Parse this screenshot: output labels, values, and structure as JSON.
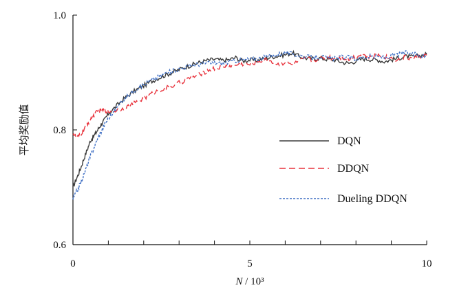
{
  "chart_data": {
    "type": "line",
    "xlabel": "N / 10³",
    "xlabel_var": "N",
    "xlabel_unit": " / 10³",
    "ylabel": "平均奖励值",
    "xlim": [
      0,
      10
    ],
    "ylim": [
      0.6,
      1.0
    ],
    "xticks": [
      {
        "v": 0,
        "label": "0"
      },
      {
        "v": 5,
        "label": "5"
      },
      {
        "v": 10,
        "label": "10"
      }
    ],
    "yticks": [
      {
        "v": 0.6,
        "label": "0.6"
      },
      {
        "v": 0.8,
        "label": "0.8"
      },
      {
        "v": 1.0,
        "label": "1.0"
      }
    ],
    "x_minor_step": 1,
    "grid": false,
    "legend_position": "right",
    "series": [
      {
        "name": "DQN",
        "color": "#3a3a3a",
        "style": "solid",
        "x": [
          0,
          0.1,
          0.2,
          0.3,
          0.4,
          0.5,
          0.6,
          0.7,
          0.8,
          0.9,
          1.0,
          1.2,
          1.4,
          1.6,
          1.8,
          2.0,
          2.2,
          2.4,
          2.6,
          2.8,
          3.0,
          3.2,
          3.4,
          3.6,
          3.8,
          4.0,
          4.2,
          4.4,
          4.6,
          4.8,
          5.0,
          5.2,
          5.4,
          5.6,
          5.8,
          6.0,
          6.2,
          6.4,
          6.6,
          6.8,
          7.0,
          7.2,
          7.4,
          7.6,
          7.8,
          8.0,
          8.2,
          8.4,
          8.6,
          8.8,
          9.0,
          9.2,
          9.4,
          9.6,
          9.8,
          10.0
        ],
        "values": [
          0.7,
          0.715,
          0.73,
          0.748,
          0.765,
          0.782,
          0.79,
          0.8,
          0.81,
          0.818,
          0.828,
          0.84,
          0.852,
          0.862,
          0.87,
          0.877,
          0.884,
          0.89,
          0.895,
          0.9,
          0.905,
          0.91,
          0.914,
          0.918,
          0.921,
          0.923,
          0.921,
          0.922,
          0.926,
          0.92,
          0.922,
          0.921,
          0.924,
          0.927,
          0.929,
          0.931,
          0.934,
          0.928,
          0.925,
          0.924,
          0.925,
          0.923,
          0.922,
          0.918,
          0.916,
          0.92,
          0.924,
          0.923,
          0.922,
          0.919,
          0.922,
          0.925,
          0.928,
          0.927,
          0.929,
          0.932
        ]
      },
      {
        "name": "DDQN",
        "color": "#e8323c",
        "style": "dashed",
        "x": [
          0,
          0.1,
          0.2,
          0.3,
          0.4,
          0.5,
          0.6,
          0.7,
          0.8,
          0.9,
          1.0,
          1.2,
          1.4,
          1.6,
          1.8,
          2.0,
          2.2,
          2.4,
          2.6,
          2.8,
          3.0,
          3.2,
          3.4,
          3.6,
          3.8,
          4.0,
          4.2,
          4.4,
          4.6,
          4.8,
          5.0,
          5.2,
          5.4,
          5.6,
          5.8,
          6.0,
          6.2,
          6.4,
          6.6,
          6.8,
          7.0,
          7.2,
          7.4,
          7.6,
          7.8,
          8.0,
          8.2,
          8.4,
          8.6,
          8.8,
          9.0,
          9.2,
          9.4,
          9.6,
          9.8,
          10.0
        ],
        "values": [
          0.795,
          0.786,
          0.79,
          0.8,
          0.81,
          0.818,
          0.826,
          0.832,
          0.833,
          0.834,
          0.832,
          0.834,
          0.837,
          0.842,
          0.848,
          0.855,
          0.862,
          0.868,
          0.872,
          0.876,
          0.882,
          0.887,
          0.892,
          0.897,
          0.903,
          0.907,
          0.91,
          0.911,
          0.913,
          0.915,
          0.914,
          0.919,
          0.922,
          0.92,
          0.914,
          0.918,
          0.913,
          0.92,
          0.924,
          0.922,
          0.925,
          0.928,
          0.924,
          0.927,
          0.923,
          0.929,
          0.931,
          0.926,
          0.93,
          0.928,
          0.925,
          0.922,
          0.927,
          0.924,
          0.928,
          0.93
        ]
      },
      {
        "name": "Dueling DDQN",
        "color": "#3f6fc4",
        "style": "dotted",
        "x": [
          0,
          0.1,
          0.2,
          0.3,
          0.4,
          0.5,
          0.6,
          0.7,
          0.8,
          0.9,
          1.0,
          1.2,
          1.4,
          1.6,
          1.8,
          2.0,
          2.2,
          2.4,
          2.6,
          2.8,
          3.0,
          3.2,
          3.4,
          3.6,
          3.8,
          4.0,
          4.2,
          4.4,
          4.6,
          4.8,
          5.0,
          5.2,
          5.4,
          5.6,
          5.8,
          6.0,
          6.2,
          6.4,
          6.6,
          6.8,
          7.0,
          7.2,
          7.4,
          7.6,
          7.8,
          8.0,
          8.2,
          8.4,
          8.6,
          8.8,
          9.0,
          9.2,
          9.4,
          9.6,
          9.8,
          10.0
        ],
        "values": [
          0.68,
          0.692,
          0.705,
          0.72,
          0.738,
          0.755,
          0.77,
          0.785,
          0.798,
          0.81,
          0.82,
          0.835,
          0.85,
          0.862,
          0.872,
          0.879,
          0.886,
          0.892,
          0.898,
          0.902,
          0.906,
          0.91,
          0.913,
          0.915,
          0.916,
          0.917,
          0.916,
          0.918,
          0.921,
          0.922,
          0.923,
          0.924,
          0.926,
          0.929,
          0.932,
          0.935,
          0.932,
          0.93,
          0.927,
          0.926,
          0.928,
          0.925,
          0.924,
          0.927,
          0.926,
          0.924,
          0.926,
          0.928,
          0.927,
          0.926,
          0.929,
          0.932,
          0.935,
          0.932,
          0.93,
          0.927
        ]
      }
    ]
  }
}
